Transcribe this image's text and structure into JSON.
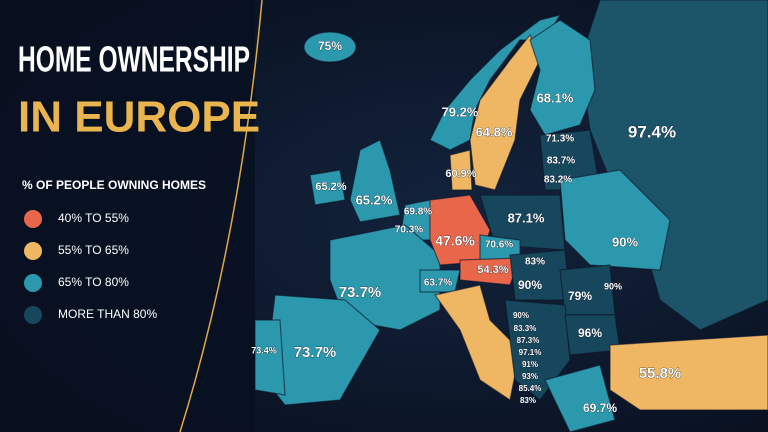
{
  "header": {
    "title_line1": "HOME OWNERSHIP",
    "title_line2": "IN EUROPE"
  },
  "legend": {
    "title": "% OF PEOPLE OWNING HOMES",
    "items": [
      {
        "label": "40% TO 55%",
        "color": "#e8674a"
      },
      {
        "label": "55% TO 65%",
        "color": "#efb664"
      },
      {
        "label": "65% TO 80%",
        "color": "#2b98ad"
      },
      {
        "label": "MORE THAN 80%",
        "color": "#17475c"
      }
    ]
  },
  "map": {
    "labels": [
      "75%",
      "97.4%",
      "68.1%",
      "79.2%",
      "64.8%",
      "71.3%",
      "83.7%",
      "83.2%",
      "60.9%",
      "65.2%",
      "65.2%",
      "69.8%",
      "70.3%",
      "47.6%",
      "87.1%",
      "70.6%",
      "90%",
      "83%",
      "54.3%",
      "63.7%",
      "73.7%",
      "90%",
      "79%",
      "90%",
      "90%",
      "83.3%",
      "87.3%",
      "97.1%",
      "91%",
      "93%",
      "85.4%",
      "83%",
      "96%",
      "73.4%",
      "73.7%",
      "55.8%",
      "69.7%"
    ]
  }
}
